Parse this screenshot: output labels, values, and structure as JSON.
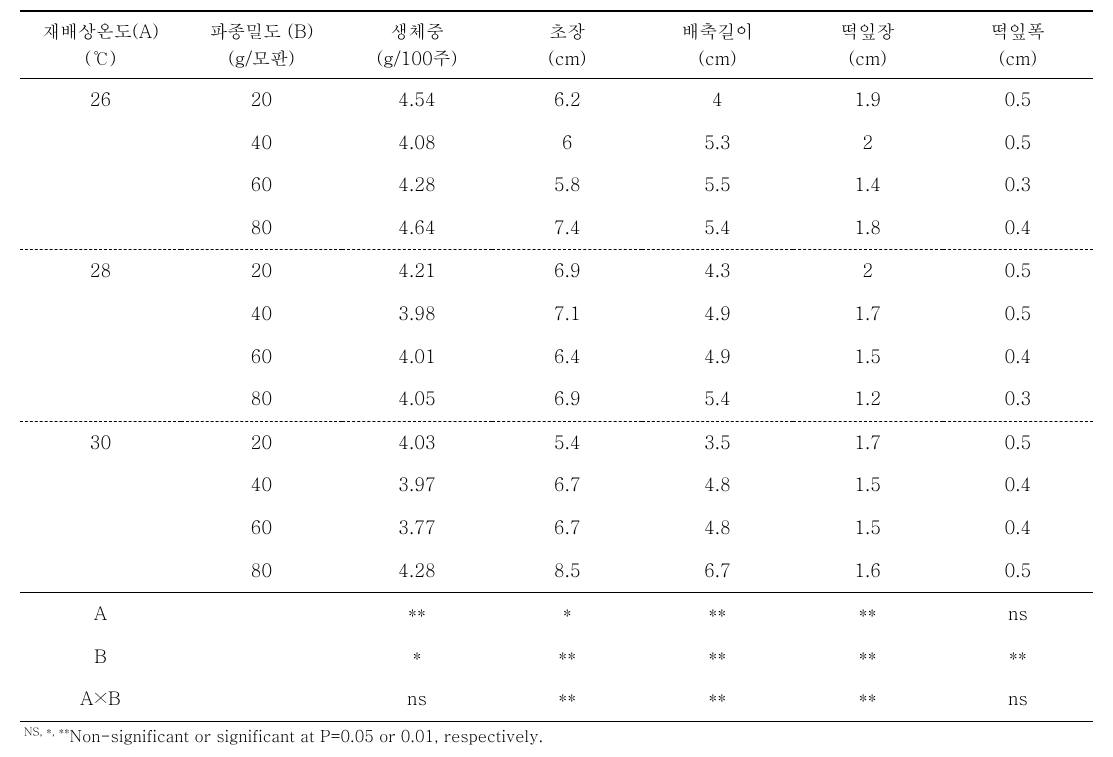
{
  "headers": {
    "col1_line1": "재배상온도(A)",
    "col1_line2": "(℃)",
    "col2_line1": "파종밀도 (B)",
    "col2_line2": "(g/모판)",
    "col3_line1": "생체중",
    "col3_line2": "(g/100주)",
    "col4_line1": "초장",
    "col4_line2": "(cm)",
    "col5_line1": "배축길이",
    "col5_line2": "(cm)",
    "col6_line1": "떡잎장",
    "col6_line2": "(cm)",
    "col7_line1": "떡잎폭",
    "col7_line2": "(cm)"
  },
  "groups": [
    {
      "temp": "26",
      "rows": [
        {
          "b": "20",
          "c": "4.54",
          "d": "6.2",
          "e": "4",
          "f": "1.9",
          "g": "0.5"
        },
        {
          "b": "40",
          "c": "4.08",
          "d": "6",
          "e": "5.3",
          "f": "2",
          "g": "0.5"
        },
        {
          "b": "60",
          "c": "4.28",
          "d": "5.8",
          "e": "5.5",
          "f": "1.4",
          "g": "0.3"
        },
        {
          "b": "80",
          "c": "4.64",
          "d": "7.4",
          "e": "5.4",
          "f": "1.8",
          "g": "0.4"
        }
      ]
    },
    {
      "temp": "28",
      "rows": [
        {
          "b": "20",
          "c": "4.21",
          "d": "6.9",
          "e": "4.3",
          "f": "2",
          "g": "0.5"
        },
        {
          "b": "40",
          "c": "3.98",
          "d": "7.1",
          "e": "4.9",
          "f": "1.7",
          "g": "0.5"
        },
        {
          "b": "60",
          "c": "4.01",
          "d": "6.4",
          "e": "4.9",
          "f": "1.5",
          "g": "0.4"
        },
        {
          "b": "80",
          "c": "4.05",
          "d": "6.9",
          "e": "5.4",
          "f": "1.2",
          "g": "0.3"
        }
      ]
    },
    {
      "temp": "30",
      "rows": [
        {
          "b": "20",
          "c": "4.03",
          "d": "5.4",
          "e": "3.5",
          "f": "1.7",
          "g": "0.5"
        },
        {
          "b": "40",
          "c": "3.97",
          "d": "6.7",
          "e": "4.8",
          "f": "1.5",
          "g": "0.4"
        },
        {
          "b": "60",
          "c": "3.77",
          "d": "6.7",
          "e": "4.8",
          "f": "1.5",
          "g": "0.4"
        },
        {
          "b": "80",
          "c": "4.28",
          "d": "8.5",
          "e": "6.7",
          "f": "1.6",
          "g": "0.5"
        }
      ]
    }
  ],
  "sig_rows": [
    {
      "label": "A",
      "c": "**",
      "d": "*",
      "e": "**",
      "f": "**",
      "g": "ns"
    },
    {
      "label": "B",
      "c": "*",
      "d": "**",
      "e": "**",
      "f": "**",
      "g": "**"
    },
    {
      "label": "A×B",
      "c": "ns",
      "d": "**",
      "e": "**",
      "f": "**",
      "g": "ns"
    }
  ],
  "footnote": {
    "supers": "NS, *, **",
    "text": "Non-significant or significant at P=0.05 or 0.01, respectively."
  }
}
